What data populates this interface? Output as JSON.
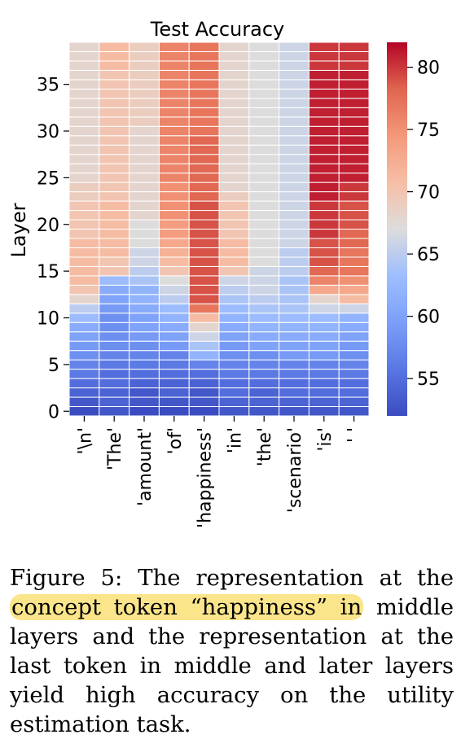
{
  "chart_data": {
    "type": "heatmap",
    "title": "Test Accuracy",
    "ylabel": "Layer",
    "xlabel": "",
    "tokens": [
      "'\\n'",
      "'The'",
      "'amount'",
      "'of'",
      "'happiness'",
      "'in'",
      "'the'",
      "'scenario'",
      "'is'",
      "' '"
    ],
    "y_ticks": [
      0,
      5,
      10,
      15,
      20,
      25,
      30,
      35
    ],
    "colorbar": {
      "min": 52,
      "max": 82,
      "ticks": [
        55,
        60,
        65,
        70,
        75,
        80
      ],
      "colormap": "coolwarm"
    },
    "values": [
      [
        52,
        53,
        52,
        52,
        52,
        53,
        53,
        53,
        53,
        53
      ],
      [
        53,
        54,
        53,
        53,
        53,
        54,
        54,
        54,
        54,
        54
      ],
      [
        54,
        54,
        53,
        54,
        53,
        55,
        54,
        55,
        55,
        55
      ],
      [
        55,
        55,
        54,
        54,
        54,
        55,
        55,
        55,
        55,
        55
      ],
      [
        56,
        55,
        55,
        55,
        55,
        56,
        56,
        56,
        56,
        56
      ],
      [
        57,
        56,
        56,
        56,
        57,
        57,
        57,
        57,
        57,
        57
      ],
      [
        58,
        57,
        57,
        57,
        62,
        58,
        58,
        59,
        59,
        58
      ],
      [
        59,
        58,
        58,
        59,
        64,
        59,
        60,
        60,
        60,
        59
      ],
      [
        60,
        58,
        59,
        60,
        66,
        60,
        61,
        61,
        61,
        60
      ],
      [
        61,
        58,
        60,
        61,
        68,
        61,
        62,
        62,
        62,
        61
      ],
      [
        63,
        58,
        60,
        62,
        71,
        62,
        63,
        63,
        63,
        62
      ],
      [
        65,
        59,
        61,
        63,
        77,
        63,
        64,
        64,
        66,
        66
      ],
      [
        68,
        60,
        62,
        65,
        79,
        64,
        65,
        64,
        68,
        71
      ],
      [
        70,
        61,
        62,
        66,
        79,
        65,
        66,
        64,
        73,
        73
      ],
      [
        71,
        63,
        64,
        67,
        79,
        66,
        66,
        64,
        76,
        75
      ],
      [
        71,
        70,
        65,
        70,
        79,
        70,
        66,
        65,
        78,
        77
      ],
      [
        71,
        70,
        66,
        71,
        79,
        71,
        67,
        65,
        79,
        77
      ],
      [
        71,
        71,
        66,
        72,
        79,
        71,
        67,
        65,
        79,
        77
      ],
      [
        71,
        71,
        67,
        73,
        79,
        71,
        67,
        66,
        79,
        78
      ],
      [
        70,
        71,
        67,
        74,
        79,
        70,
        67,
        66,
        80,
        78
      ],
      [
        70,
        71,
        67,
        74,
        79,
        70,
        67,
        66,
        80,
        79
      ],
      [
        70,
        71,
        68,
        75,
        79,
        70,
        67,
        66,
        80,
        79
      ],
      [
        70,
        71,
        68,
        75,
        79,
        70,
        67,
        66,
        80,
        79
      ],
      [
        69,
        70,
        68,
        75,
        78,
        69,
        67,
        66,
        81,
        80
      ],
      [
        69,
        70,
        68,
        75,
        78,
        68,
        67,
        66,
        81,
        80
      ],
      [
        68,
        70,
        68,
        76,
        78,
        68,
        67,
        66,
        81,
        81
      ],
      [
        68,
        70,
        68,
        76,
        78,
        68,
        67,
        66,
        81,
        81
      ],
      [
        68,
        70,
        68,
        76,
        78,
        68,
        67,
        66,
        81,
        81
      ],
      [
        68,
        70,
        68,
        76,
        78,
        68,
        67,
        66,
        81,
        81
      ],
      [
        68,
        70,
        68,
        76,
        78,
        68,
        67,
        66,
        81,
        81
      ],
      [
        68,
        70,
        68,
        76,
        77,
        68,
        67,
        66,
        81,
        81
      ],
      [
        68,
        70,
        69,
        76,
        77,
        68,
        67,
        66,
        81,
        81
      ],
      [
        68,
        70,
        69,
        76,
        77,
        68,
        67,
        66,
        81,
        81
      ],
      [
        68,
        70,
        69,
        76,
        77,
        68,
        67,
        66,
        81,
        81
      ],
      [
        68,
        70,
        69,
        76,
        77,
        68,
        67,
        66,
        81,
        81
      ],
      [
        68,
        70,
        69,
        76,
        77,
        68,
        67,
        66,
        81,
        81
      ],
      [
        68,
        70,
        69,
        76,
        77,
        68,
        67,
        66,
        81,
        81
      ],
      [
        68,
        71,
        69,
        76,
        77,
        68,
        67,
        66,
        80,
        80
      ],
      [
        68,
        71,
        69,
        76,
        77,
        68,
        67,
        66,
        80,
        80
      ],
      [
        68,
        71,
        69,
        76,
        77,
        68,
        67,
        66,
        80,
        80
      ]
    ]
  },
  "caption": {
    "pre": "Figure 5: The representation at the ",
    "highlight": "concept token “happiness” in",
    "post": " middle layers and the representation at the last token in middle and later layers yield high accuracy on the utility estimation task."
  }
}
